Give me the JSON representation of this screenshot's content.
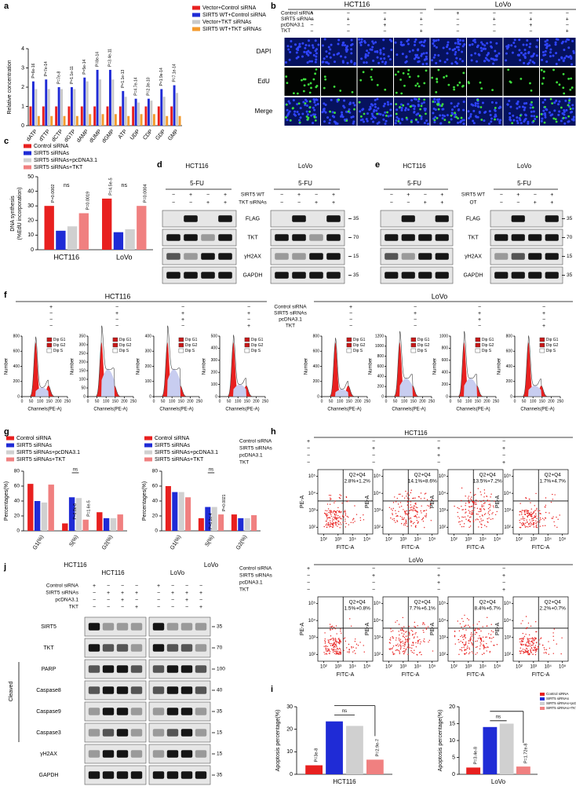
{
  "panel_labels": [
    "a",
    "b",
    "c",
    "d",
    "e",
    "f",
    "g",
    "h",
    "i",
    "j"
  ],
  "a": {
    "type": "bar",
    "ylabel": "Relative concentration",
    "categories": [
      "dATP",
      "dTTP",
      "dCTP",
      "dGTP",
      "dAMP",
      "dUMP",
      "dGMP",
      "ATP",
      "UDP",
      "CDP",
      "GDP",
      "GMP"
    ],
    "series": [
      {
        "name": "Vector+Control siRNA",
        "color": "#e8201f",
        "values": [
          1,
          1,
          1,
          1,
          1,
          1,
          1,
          1,
          1,
          1,
          1,
          1
        ]
      },
      {
        "name": "SIRT5 WT+Control siRNA",
        "color": "#1f2bd6",
        "values": [
          2.3,
          2.4,
          2.0,
          2.0,
          2.5,
          2.9,
          2.9,
          1.8,
          1.4,
          1.4,
          1.9,
          2.1
        ]
      },
      {
        "name": "Vector+TKT siRNAs",
        "color": "#c9c9c9",
        "values": [
          1.9,
          1.9,
          1.9,
          1.9,
          2.3,
          2.4,
          2.4,
          1.5,
          1.2,
          1.3,
          1.5,
          1.7
        ]
      },
      {
        "name": "SIRT5 WT+TKT siRNAs",
        "color": "#f39a2c",
        "values": [
          0.5,
          0.5,
          0.5,
          0.5,
          0.6,
          0.6,
          0.6,
          0.5,
          0.6,
          0.6,
          0.5,
          0.5
        ]
      }
    ],
    "ylim": [
      0,
      4
    ],
    "yticks": [
      0,
      1,
      2,
      3,
      4
    ],
    "annotations": [
      "P=6e-16",
      "P=7e-14",
      "P=7e-8",
      "P=1.1e-11",
      "P=5e-14",
      "P=8e-14",
      "P=3.4e-11",
      "P=1.1e-13",
      "P=4.7e-14",
      "P=2.3e-10",
      "P=1.9e-14",
      "P=7.1e-14"
    ]
  },
  "b": {
    "cell_lines": [
      "HCT116",
      "LoVo"
    ],
    "conditions": [
      {
        "label": "Control siRNA",
        "signs": [
          "+",
          "−",
          "−",
          "−",
          "+",
          "−",
          "−",
          "−"
        ]
      },
      {
        "label": "SIRT5 siRNAs",
        "signs": [
          "−",
          "+",
          "+",
          "+",
          "−",
          "+",
          "+",
          "+"
        ]
      },
      {
        "label": "pcDNA3.1",
        "signs": [
          "−",
          "−",
          "+",
          "−",
          "−",
          "−",
          "+",
          "−"
        ]
      },
      {
        "label": "TKT",
        "signs": [
          "−",
          "−",
          "−",
          "+",
          "−",
          "−",
          "−",
          "+"
        ]
      }
    ],
    "rows": [
      "DAPI",
      "EdU",
      "Merge"
    ]
  },
  "c": {
    "type": "bar",
    "ylabel": [
      "DNA synthesis",
      "(%EdU incorporation)"
    ],
    "categories": [
      "HCT116",
      "LoVo"
    ],
    "series": [
      {
        "name": "Control siRNA",
        "color": "#e8201f",
        "values": [
          30,
          35
        ]
      },
      {
        "name": "SIRT5 siRNAs",
        "color": "#1f2bd6",
        "values": [
          13,
          12
        ]
      },
      {
        "name": "SIRT5 siRNAs+pcDNA3.1",
        "color": "#d0d0d0",
        "values": [
          16,
          14
        ]
      },
      {
        "name": "SIRT5 siRNAs+TKT",
        "color": "#f08080",
        "values": [
          25,
          30
        ]
      }
    ],
    "ylim": [
      0,
      50
    ],
    "yticks": [
      0,
      10,
      20,
      30,
      40,
      50
    ],
    "annotations": [
      "P=0.0002",
      "P=0.0019",
      "ns",
      "P=4.5e-5",
      "P=0.0004",
      "ns"
    ]
  },
  "d": {
    "cell_lines": [
      "HCT116",
      "LoVo"
    ],
    "treatment": "5-FU",
    "conditions": [
      {
        "label": "SIRT5 WT",
        "signs": [
          "−",
          "+",
          "−",
          "+"
        ]
      },
      {
        "label": "TKT siRNAs",
        "signs": [
          "−",
          "−",
          "+",
          "+"
        ]
      }
    ],
    "rows": [
      {
        "label": "FLAG",
        "mw": 35
      },
      {
        "label": "TKT",
        "mw": 70
      },
      {
        "label": "γH2AX",
        "mw": 15
      },
      {
        "label": "GAPDH",
        "mw": 35
      }
    ]
  },
  "e": {
    "cell_lines": [
      "HCT116",
      "LoVo"
    ],
    "treatment": "5-FU",
    "conditions": [
      {
        "label": "SIRT5 WT",
        "signs": [
          "−",
          "+",
          "−",
          "+"
        ]
      },
      {
        "label": "OT",
        "signs": [
          "−",
          "−",
          "+",
          "+"
        ]
      }
    ],
    "rows": [
      {
        "label": "FLAG",
        "mw": 35
      },
      {
        "label": "TKT",
        "mw": 70
      },
      {
        "label": "γH2AX",
        "mw": 15
      },
      {
        "label": "GAPDH",
        "mw": 35
      }
    ]
  },
  "f": {
    "cell_lines": [
      "HCT116",
      "LoVo"
    ],
    "conditions": [
      {
        "label": "Control siRNA",
        "signs": [
          "+",
          "−",
          "−",
          "−",
          "+",
          "−",
          "−",
          "−"
        ]
      },
      {
        "label": "SIRT5 siRNAs",
        "signs": [
          "−",
          "+",
          "+",
          "+",
          "−",
          "+",
          "+",
          "+"
        ]
      },
      {
        "label": "pcDNA3.1",
        "signs": [
          "−",
          "−",
          "+",
          "−",
          "−",
          "−",
          "+",
          "−"
        ]
      },
      {
        "label": "TKT",
        "signs": [
          "−",
          "−",
          "−",
          "+",
          "−",
          "−",
          "−",
          "+"
        ]
      }
    ],
    "xlabel": "Channels(PE-A)",
    "ylabel": "Number",
    "legend": [
      "Dip G1",
      "Dip G2",
      "Dip S"
    ],
    "xticks": [
      0,
      50,
      100,
      150,
      200,
      250
    ],
    "plots": [
      {
        "yticks": [
          0,
          200,
          400,
          600,
          800
        ]
      },
      {
        "yticks": [
          0,
          50,
          100,
          150,
          200,
          250,
          300,
          350
        ]
      },
      {
        "yticks": [
          0,
          100,
          200,
          300,
          400
        ]
      },
      {
        "yticks": [
          0,
          100,
          200,
          300,
          400,
          500
        ]
      },
      {
        "yticks": [
          0,
          200,
          400,
          600,
          800
        ]
      },
      {
        "yticks": [
          0,
          200,
          400,
          600,
          800,
          1000,
          1200
        ]
      },
      {
        "yticks": [
          0,
          200,
          400,
          600,
          800,
          1000
        ]
      },
      {
        "yticks": [
          0,
          200,
          400,
          600,
          800
        ]
      }
    ]
  },
  "g": {
    "ylabel": "Percentages(%)",
    "charts": [
      {
        "type": "bar",
        "title": "HCT116",
        "categories": [
          "G1(%)",
          "S(%)",
          "G2(%)"
        ],
        "series": [
          {
            "name": "Control siRNA",
            "color": "#e8201f",
            "values": [
              63,
              10,
              25
            ]
          },
          {
            "name": "SIRT5 siRNAs",
            "color": "#1f2bd6",
            "values": [
              40,
              45,
              17
            ]
          },
          {
            "name": "SIRT5 siRNAs+pcDNA3.1",
            "color": "#d0d0d0",
            "values": [
              38,
              44,
              17
            ]
          },
          {
            "name": "SIRT5 siRNAs+TKT",
            "color": "#f08080",
            "values": [
              62,
              15,
              22
            ]
          }
        ],
        "ylim": [
          0,
          80
        ],
        "yticks": [
          0,
          20,
          40,
          60,
          80
        ],
        "annotations": [
          "P=6.8e-8",
          "ns",
          "P=1.6e-5"
        ]
      },
      {
        "type": "bar",
        "title": "LoVo",
        "categories": [
          "G1(%)",
          "S(%)",
          "G2(%)"
        ],
        "series": [
          {
            "name": "Control siRNA",
            "color": "#e8201f",
            "values": [
              60,
              17,
              22
            ]
          },
          {
            "name": "SIRT5 siRNAs",
            "color": "#1f2bd6",
            "values": [
              52,
              32,
              17
            ]
          },
          {
            "name": "SIRT5 siRNAs+pcDNA3.1",
            "color": "#d0d0d0",
            "values": [
              52,
              32,
              17
            ]
          },
          {
            "name": "SIRT5 siRNAs+TKT",
            "color": "#f08080",
            "values": [
              45,
              22,
              21
            ]
          }
        ],
        "ylim": [
          0,
          80
        ],
        "yticks": [
          0,
          20,
          40,
          60,
          80
        ],
        "annotations": [
          "P=6.2e-4",
          "ns",
          "P=0.0021"
        ]
      }
    ]
  },
  "h": {
    "conditions": [
      {
        "label": "Control siRNA",
        "signs": [
          "+",
          "−",
          "−",
          "−"
        ]
      },
      {
        "label": "SIRT5 siRNAs",
        "signs": [
          "−",
          "+",
          "+",
          "+"
        ]
      },
      {
        "label": "pcDNA3.1",
        "signs": [
          "−",
          "−",
          "+",
          "−"
        ]
      },
      {
        "label": "TKT",
        "signs": [
          "−",
          "−",
          "−",
          "+"
        ]
      }
    ],
    "xlabel": "FITC-A",
    "ylabel": "PE-A",
    "ticks": [
      {
        "value": 2,
        "label": "10²"
      },
      {
        "value": 3,
        "label": "10³"
      },
      {
        "value": 4,
        "label": "10⁴"
      },
      {
        "value": 5,
        "label": "10⁵"
      }
    ],
    "rows": [
      {
        "title": "HCT116",
        "plots": [
          {
            "quadrant": "Q2+Q4",
            "value": "2.8%+1.2%"
          },
          {
            "quadrant": "Q2+Q4",
            "value": "14.1%+8.6%"
          },
          {
            "quadrant": "Q2+Q4",
            "value": "13.5%+7.2%"
          },
          {
            "quadrant": "Q2+Q4",
            "value": "1.7%+4.7%"
          }
        ]
      },
      {
        "title": "LoVo",
        "plots": [
          {
            "quadrant": "Q2+Q4",
            "value": "1.5%+0.8%"
          },
          {
            "quadrant": "Q2+Q4",
            "value": "7.7%+6.1%"
          },
          {
            "quadrant": "Q2+Q4",
            "value": "8.4%+6.7%"
          },
          {
            "quadrant": "Q2+Q4",
            "value": "2.2%+0.7%"
          }
        ]
      }
    ]
  },
  "i": {
    "ylabel": "Apoptosis percentage(%)",
    "legend": [
      "Control siRNA",
      "SIRT5 siRNAs",
      "SIRT5 siRNAs+pcDNA3.1",
      "SIRT5 siRNAs+TKT"
    ],
    "charts": [
      {
        "type": "bar",
        "categories": [
          "HCT116"
        ],
        "series": [
          {
            "color": "#e8201f",
            "values": [
              4
            ]
          },
          {
            "color": "#1f2bd6",
            "values": [
              23.5
            ]
          },
          {
            "color": "#d0d0d0",
            "values": [
              21.5
            ]
          },
          {
            "color": "#f08080",
            "values": [
              6.5
            ]
          }
        ],
        "ylim": [
          0,
          30
        ],
        "yticks": [
          0,
          10,
          20,
          30
        ],
        "annotations": [
          "P=3e-8",
          "ns",
          "P=2.9e-7"
        ]
      },
      {
        "type": "bar",
        "categories": [
          "LoVo"
        ],
        "series": [
          {
            "color": "#e8201f",
            "values": [
              2
            ]
          },
          {
            "color": "#1f2bd6",
            "values": [
              14
            ]
          },
          {
            "color": "#d0d0d0",
            "values": [
              15
            ]
          },
          {
            "color": "#f08080",
            "values": [
              2.3
            ]
          }
        ],
        "ylim": [
          0,
          20
        ],
        "yticks": [
          0,
          5,
          10,
          15,
          20
        ],
        "annotations": [
          "P=3.4e-8",
          "ns",
          "P=1.72e-8"
        ]
      }
    ]
  },
  "j": {
    "cell_lines": [
      "HCT116",
      "LoVo"
    ],
    "group_label": "Cleaved",
    "conditions": [
      {
        "label": "Control siRNA",
        "signs": [
          "+",
          "−",
          "−",
          "−"
        ]
      },
      {
        "label": "SIRT5 siRNAs",
        "signs": [
          "−",
          "+",
          "+",
          "+"
        ]
      },
      {
        "label": "pcDNA3.1",
        "signs": [
          "−",
          "−",
          "+",
          "−"
        ]
      },
      {
        "label": "TKT",
        "signs": [
          "−",
          "−",
          "−",
          "+"
        ]
      }
    ],
    "rows": [
      {
        "label": "SIRT5",
        "mw": 35
      },
      {
        "label": "TKT",
        "mw": 70
      },
      {
        "label": "PARP",
        "mw": 100
      },
      {
        "label": "Caspase8",
        "mw": 40
      },
      {
        "label": "Caspase9",
        "mw": 35
      },
      {
        "label": "Caspase3",
        "mw": 15
      },
      {
        "label": "γH2AX",
        "mw": 15
      },
      {
        "label": "GAPDH",
        "mw": 35
      }
    ]
  }
}
